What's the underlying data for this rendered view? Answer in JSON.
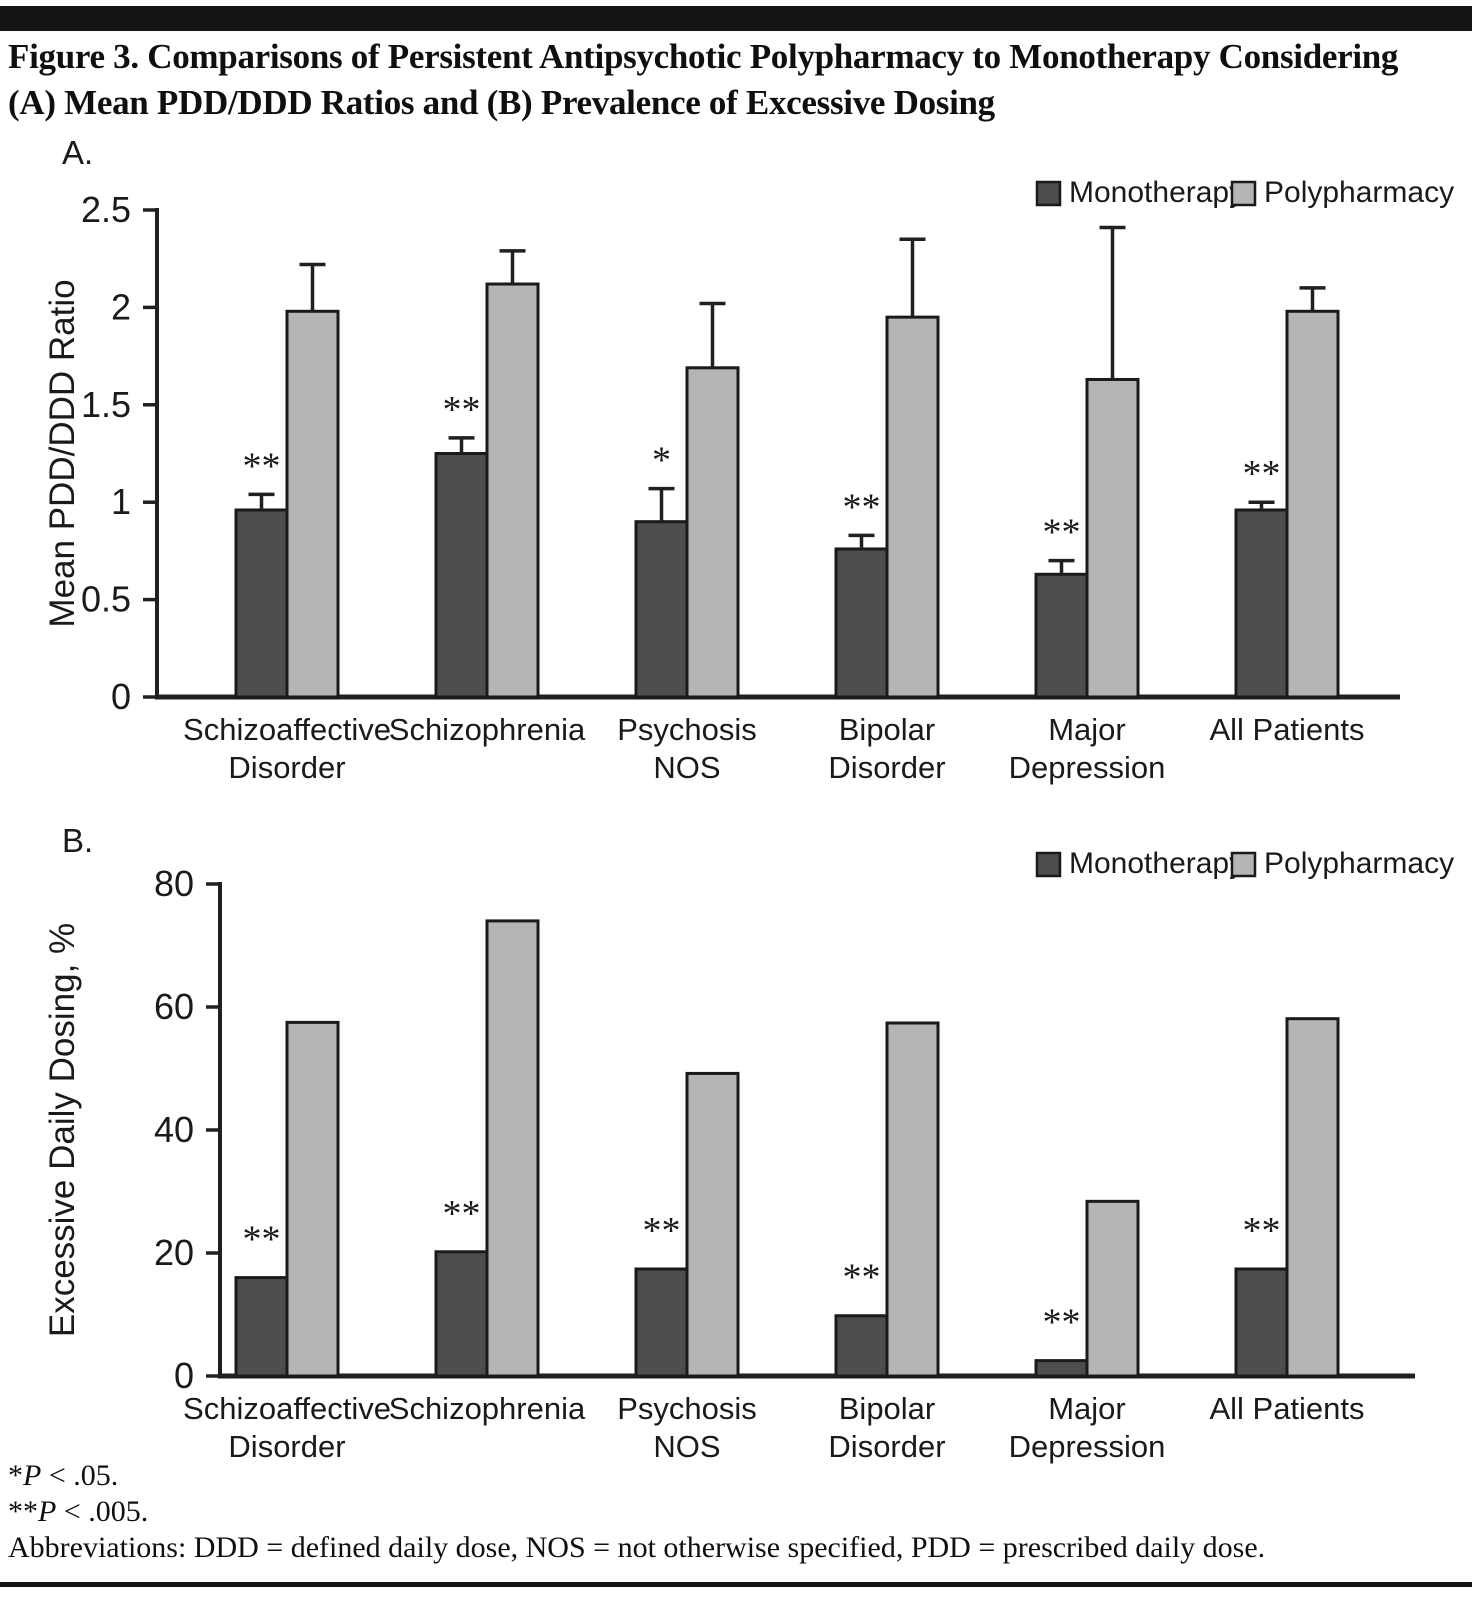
{
  "page": {
    "title_line1": "Figure 3. Comparisons of Persistent Antipsychotic Polypharmacy to Monotherapy Considering",
    "title_line2": "(A) Mean PDD/DDD Ratios and (B) Prevalence of Excessive Dosing",
    "footnotes": {
      "note1": {
        "stars": "*",
        "p": "P",
        "rest": " < .05."
      },
      "note2": {
        "stars": "**",
        "p": "P",
        "rest": " < .005."
      },
      "abbreviations": "Abbreviations: DDD = defined daily dose, NOS = not otherwise specified, PDD = prescribed daily dose."
    }
  },
  "colors": {
    "monotherapy": "#4d4d4d",
    "polypharmacy": "#b5b5b5",
    "bar_outline": "#1a1a1a",
    "axis": "#231f20",
    "significance": "#3a3a3a"
  },
  "chart_data": [
    {
      "id": "A",
      "panel_label": "A.",
      "type": "bar",
      "title": "",
      "xlabel": "",
      "ylabel": "Mean PDD/DDD Ratio",
      "ylim": [
        0,
        2.5
      ],
      "ytick_labels": [
        "0",
        "0.5",
        "1",
        "1.5",
        "2",
        "2.5"
      ],
      "grid": false,
      "legend_position": "top-right",
      "legend": [
        "Monotherapy",
        "Polypharmacy"
      ],
      "categories": [
        "Schizoaffective Disorder",
        "Schizophrenia",
        "Psychosis NOS",
        "Bipolar Disorder",
        "Major Depression",
        "All Patients"
      ],
      "category_lines": [
        [
          "Schizoaffective",
          "Disorder"
        ],
        [
          "Schizophrenia"
        ],
        [
          "Psychosis",
          "NOS"
        ],
        [
          "Bipolar",
          "Disorder"
        ],
        [
          "Major",
          "Depression"
        ],
        [
          "All Patients"
        ]
      ],
      "series": [
        {
          "name": "Monotherapy",
          "values": [
            0.96,
            1.25,
            0.9,
            0.76,
            0.63,
            0.96
          ],
          "error_tops": [
            1.04,
            1.33,
            1.07,
            0.83,
            0.7,
            1.0
          ]
        },
        {
          "name": "Polypharmacy",
          "values": [
            1.98,
            2.12,
            1.69,
            1.95,
            1.63,
            1.98
          ],
          "error_tops": [
            2.22,
            2.29,
            2.02,
            2.35,
            2.41,
            2.1
          ]
        }
      ],
      "significance_on_monotherapy": [
        "**",
        "**",
        "*",
        "**",
        "**",
        "**"
      ]
    },
    {
      "id": "B",
      "panel_label": "B.",
      "type": "bar",
      "title": "",
      "xlabel": "",
      "ylabel": "Excessive Daily Dosing, %",
      "ylim": [
        0,
        80
      ],
      "ytick_labels": [
        "0",
        "20",
        "40",
        "60",
        "80"
      ],
      "grid": false,
      "legend_position": "top-right",
      "legend": [
        "Monotherapy",
        "Polypharmacy"
      ],
      "categories": [
        "Schizoaffective Disorder",
        "Schizophrenia",
        "Psychosis NOS",
        "Bipolar Disorder",
        "Major Depression",
        "All Patients"
      ],
      "category_lines": [
        [
          "Schizoaffective",
          "Disorder"
        ],
        [
          "Schizophrenia"
        ],
        [
          "Psychosis",
          "NOS"
        ],
        [
          "Bipolar",
          "Disorder"
        ],
        [
          "Major",
          "Depression"
        ],
        [
          "All Patients"
        ]
      ],
      "series": [
        {
          "name": "Monotherapy",
          "values": [
            16.0,
            20.2,
            17.4,
            9.8,
            2.5,
            17.4
          ]
        },
        {
          "name": "Polypharmacy",
          "values": [
            57.5,
            74.0,
            49.2,
            57.4,
            28.4,
            58.1
          ]
        }
      ],
      "significance_on_monotherapy": [
        "**",
        "**",
        "**",
        "**",
        "**",
        "**"
      ]
    }
  ]
}
